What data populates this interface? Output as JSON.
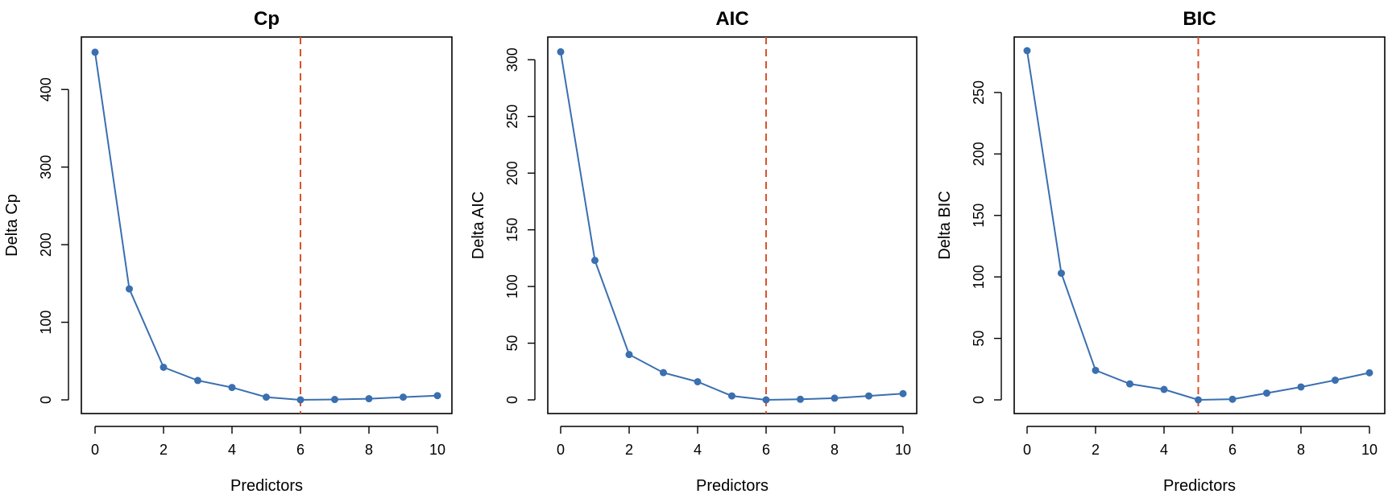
{
  "colors": {
    "series": "#3a6fb0",
    "reference_line": "#d9522b",
    "axes": "#000000"
  },
  "chart_data": [
    {
      "type": "line",
      "title": "Cp",
      "xlabel": "Predictors",
      "ylabel": "Delta Cp",
      "x": [
        0,
        1,
        2,
        3,
        4,
        5,
        6,
        7,
        8,
        9,
        10
      ],
      "y": [
        448,
        143,
        42,
        25,
        16,
        3.5,
        0,
        0.5,
        1.5,
        3.5,
        5.5
      ],
      "xlim": [
        0,
        10
      ],
      "ylim": [
        0,
        450
      ],
      "xticks": [
        0,
        2,
        4,
        6,
        8,
        10
      ],
      "yticks": [
        0,
        100,
        200,
        300,
        400
      ],
      "vline": 6,
      "grid": false,
      "markers": true
    },
    {
      "type": "line",
      "title": "AIC",
      "xlabel": "Predictors",
      "ylabel": "Delta AIC",
      "x": [
        0,
        1,
        2,
        3,
        4,
        5,
        6,
        7,
        8,
        9,
        10
      ],
      "y": [
        307,
        123,
        40,
        24,
        16,
        3.5,
        0,
        0.5,
        1.5,
        3.5,
        5.5
      ],
      "xlim": [
        0,
        10
      ],
      "ylim": [
        0,
        308
      ],
      "xticks": [
        0,
        2,
        4,
        6,
        8,
        10
      ],
      "yticks": [
        0,
        50,
        100,
        150,
        200,
        250,
        300
      ],
      "vline": 6,
      "grid": false,
      "markers": true
    },
    {
      "type": "line",
      "title": "BIC",
      "xlabel": "Predictors",
      "ylabel": "Delta BIC",
      "x": [
        0,
        1,
        2,
        3,
        4,
        5,
        6,
        7,
        8,
        9,
        10
      ],
      "y": [
        284,
        103,
        24,
        13,
        8.5,
        0,
        0.5,
        5.5,
        10.5,
        16,
        22
      ],
      "xlim": [
        0,
        10
      ],
      "ylim": [
        0,
        284
      ],
      "xticks": [
        0,
        2,
        4,
        6,
        8,
        10
      ],
      "yticks": [
        0,
        50,
        100,
        150,
        200,
        250
      ],
      "vline": 5,
      "grid": false,
      "markers": true
    }
  ]
}
